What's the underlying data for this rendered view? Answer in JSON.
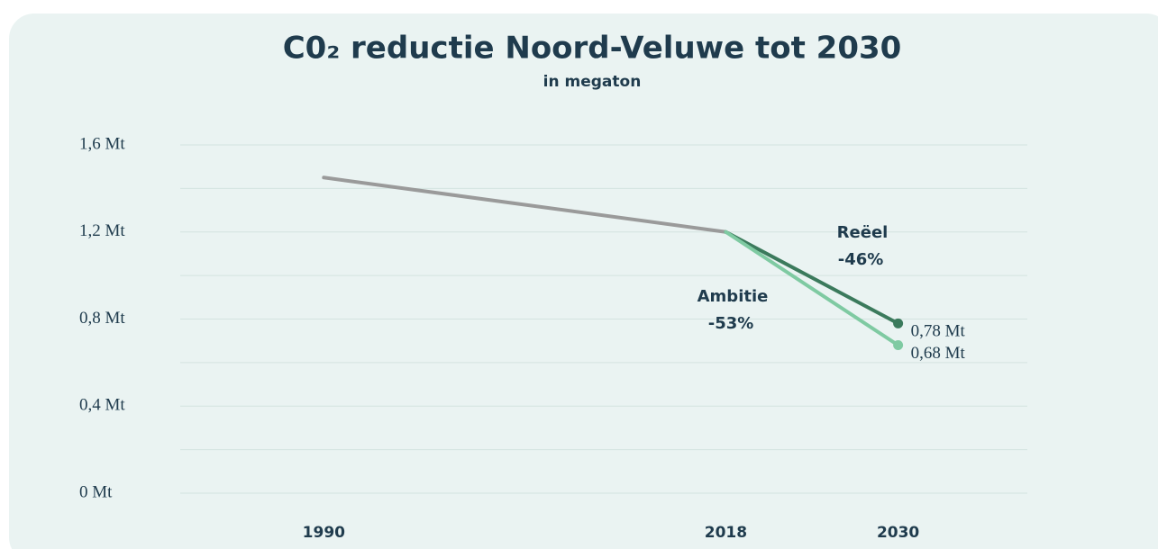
{
  "chart_data": {
    "type": "line",
    "title": "C0₂ reductie Noord-Veluwe tot 2030",
    "subtitle": "in megaton",
    "xlim": [
      1980,
      2039
    ],
    "xticks": [
      1990,
      2018,
      2030
    ],
    "ylim": [
      0,
      1.6
    ],
    "yticks": [
      {
        "value": 0,
        "label": "0 Mt"
      },
      {
        "value": 0.4,
        "label": "0,4 Mt"
      },
      {
        "value": 0.8,
        "label": "0,8 Mt"
      },
      {
        "value": 1.2,
        "label": "1,2 Mt"
      },
      {
        "value": 1.6,
        "label": "1,6 Mt"
      }
    ],
    "minor_yticks": [
      0.2,
      0.6,
      1.0,
      1.4
    ],
    "grid": true,
    "series": [
      {
        "color": "#9a9a9a",
        "x": [
          1990,
          2018
        ],
        "values": [
          1.45,
          1.2
        ]
      },
      {
        "name": "Reëel",
        "change": "-46%",
        "color": "#3b7a5c",
        "x": [
          2018,
          2030
        ],
        "values": [
          1.2,
          0.78
        ],
        "value_labels": [
          null,
          "0,78 Mt"
        ]
      },
      {
        "name": "Ambitie",
        "change": "-53%",
        "color": "#7fcaa2",
        "x": [
          2018,
          2030
        ],
        "values": [
          1.2,
          0.68
        ],
        "value_labels": [
          null,
          "0,68 Mt"
        ]
      }
    ]
  }
}
